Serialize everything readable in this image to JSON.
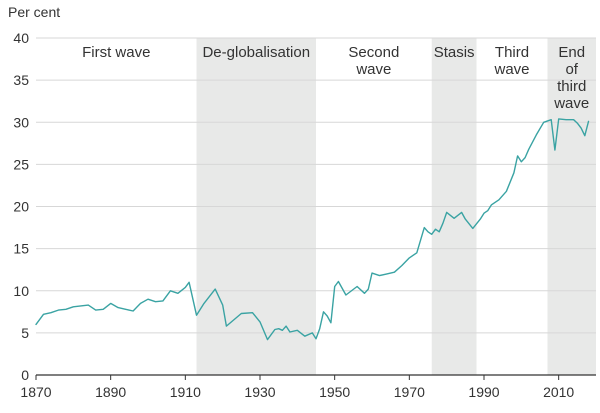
{
  "chart_data": {
    "type": "line",
    "ylabel": "Per cent",
    "xlim": [
      1870,
      2020
    ],
    "ylim": [
      0,
      40
    ],
    "x_ticks": [
      1870,
      1890,
      1910,
      1930,
      1950,
      1970,
      1990,
      2010
    ],
    "y_ticks": [
      0,
      5,
      10,
      15,
      20,
      25,
      30,
      35,
      40
    ],
    "grid": "horizontal",
    "colors": {
      "line": "#3aa3a3",
      "shade": "#e8e9e8",
      "grid": "#d7d7d7",
      "baseline": "#333333",
      "text": "#333333"
    },
    "series": [
      {
        "x": [
          1870,
          1872,
          1874,
          1876,
          1878,
          1880,
          1882,
          1884,
          1886,
          1888,
          1890,
          1892,
          1894,
          1896,
          1898,
          1900,
          1902,
          1904,
          1906,
          1908,
          1910,
          1911,
          1913,
          1915,
          1918,
          1920,
          1921,
          1925,
          1928,
          1930,
          1932,
          1934,
          1935,
          1936,
          1937,
          1938,
          1940,
          1942,
          1944,
          1945,
          1946,
          1947,
          1948,
          1949,
          1950,
          1951,
          1953,
          1956,
          1958,
          1959,
          1960,
          1962,
          1964,
          1966,
          1968,
          1970,
          1972,
          1974,
          1975,
          1976,
          1977,
          1978,
          1979,
          1980,
          1982,
          1984,
          1985,
          1987,
          1989,
          1990,
          1991,
          1992,
          1994,
          1996,
          1998,
          1999,
          2000,
          2001,
          2002,
          2004,
          2006,
          2008,
          2009,
          2010,
          2012,
          2014,
          2015,
          2016,
          2017,
          2018
        ],
        "y": [
          6.0,
          7.2,
          7.4,
          7.7,
          7.8,
          8.1,
          8.2,
          8.3,
          7.7,
          7.8,
          8.5,
          8.0,
          7.8,
          7.6,
          8.5,
          9.0,
          8.7,
          8.8,
          10.0,
          9.7,
          10.4,
          11.0,
          7.1,
          8.5,
          10.2,
          8.3,
          5.8,
          7.3,
          7.4,
          6.3,
          4.2,
          5.4,
          5.5,
          5.3,
          5.8,
          5.1,
          5.3,
          4.6,
          5.0,
          4.3,
          5.5,
          7.5,
          7.0,
          6.2,
          10.5,
          11.1,
          9.5,
          10.5,
          9.7,
          10.2,
          12.1,
          11.8,
          12.0,
          12.2,
          13.0,
          13.9,
          14.5,
          17.5,
          17.0,
          16.7,
          17.3,
          17.0,
          18.0,
          19.3,
          18.6,
          19.3,
          18.5,
          17.4,
          18.5,
          19.2,
          19.5,
          20.2,
          20.8,
          21.8,
          24.0,
          26.0,
          25.3,
          25.8,
          26.8,
          28.5,
          30.0,
          30.3,
          26.7,
          30.4,
          30.3,
          30.3,
          29.9,
          29.3,
          28.4,
          30.1
        ]
      }
    ],
    "eras": [
      {
        "label": [
          "First wave"
        ],
        "start": 1870,
        "end": 1913,
        "shaded": false
      },
      {
        "label": [
          "De-globalisation"
        ],
        "start": 1913,
        "end": 1945,
        "shaded": true
      },
      {
        "label": [
          "Second",
          "wave"
        ],
        "start": 1945,
        "end": 1976,
        "shaded": false
      },
      {
        "label": [
          "Stasis"
        ],
        "start": 1976,
        "end": 1988,
        "shaded": true
      },
      {
        "label": [
          "Third",
          "wave"
        ],
        "start": 1988,
        "end": 2007,
        "shaded": false
      },
      {
        "label": [
          "End",
          "of",
          "third",
          "wave"
        ],
        "start": 2007,
        "end": 2021,
        "shaded": true
      }
    ]
  }
}
